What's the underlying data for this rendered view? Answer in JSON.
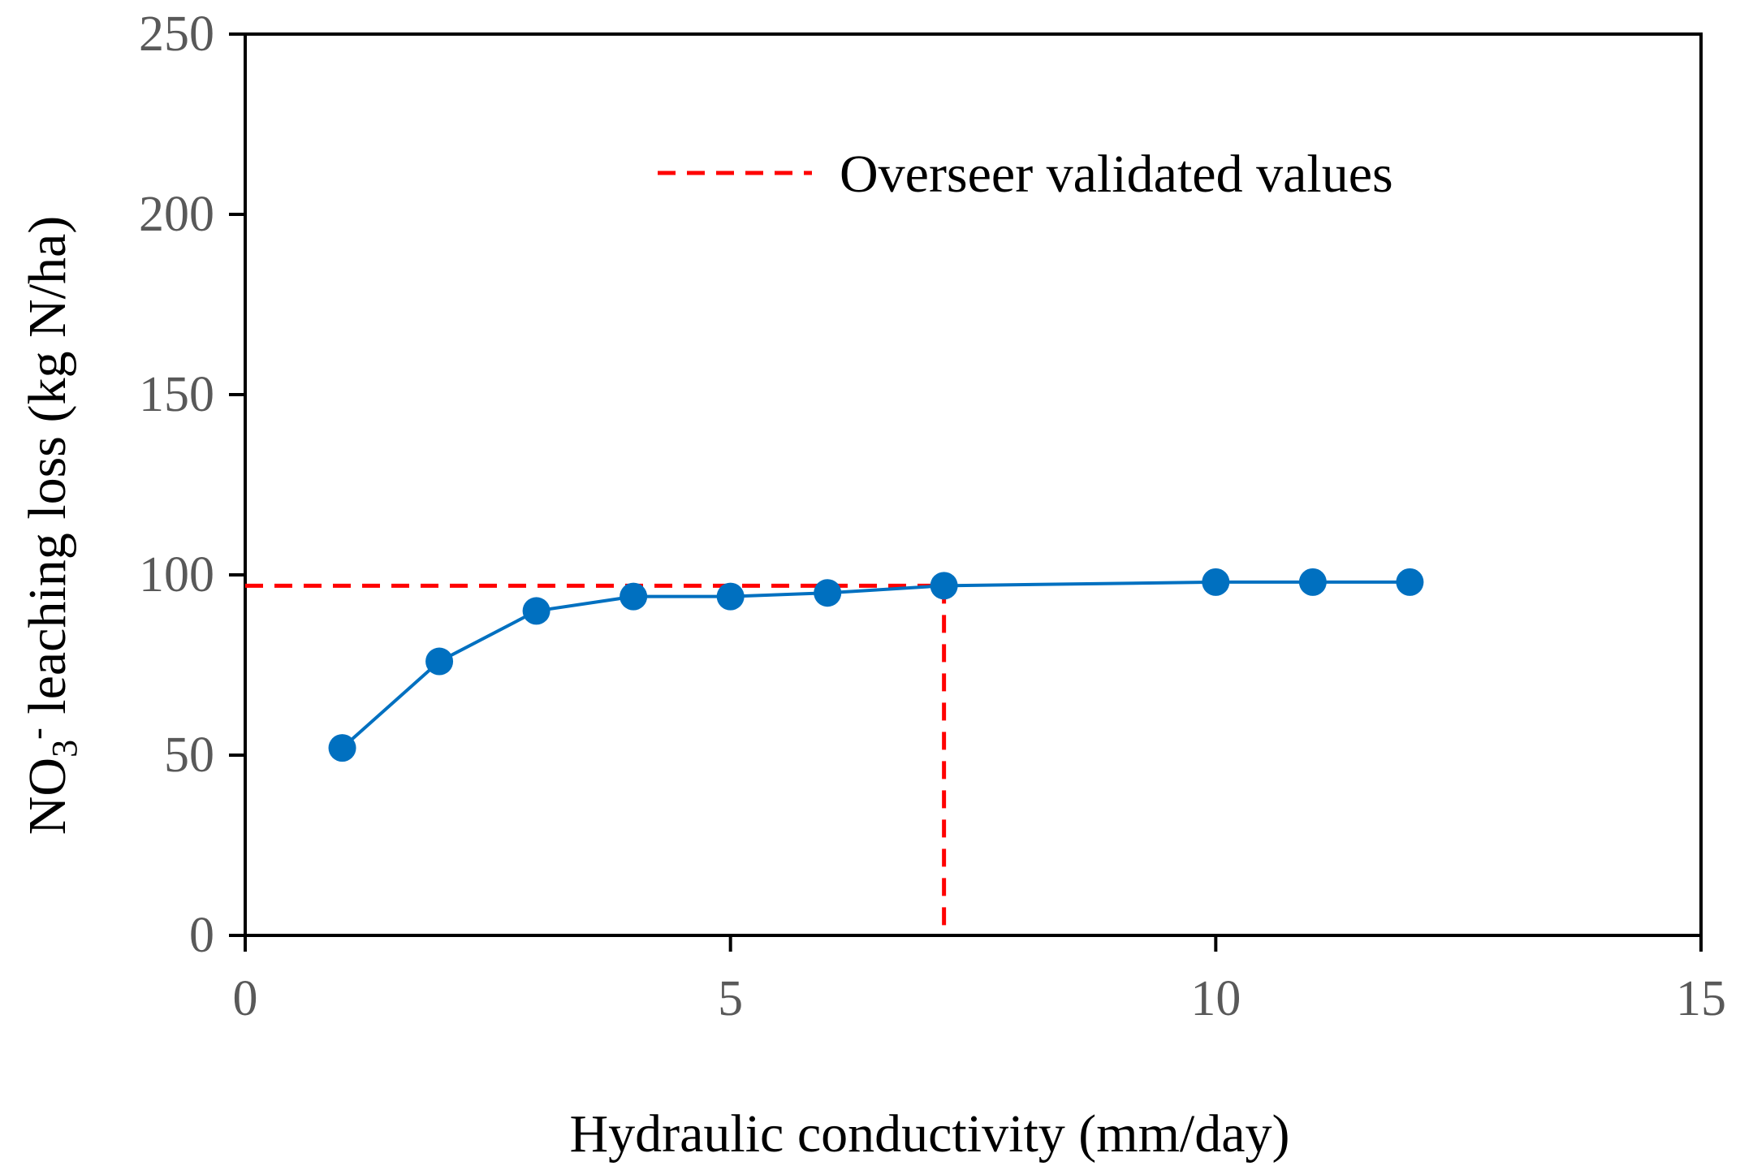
{
  "chart_data": {
    "type": "line",
    "xlabel": "Hydraulic conductivity (mm/day)",
    "ylabel": {
      "prefix": "NO",
      "subscript": "3",
      "superscript": "-",
      "suffix": " leaching loss (kg N/ha)"
    },
    "xlim": [
      0,
      15
    ],
    "ylim": [
      0,
      250
    ],
    "x_ticks": [
      0,
      5,
      10,
      15
    ],
    "y_ticks": [
      0,
      50,
      100,
      150,
      200,
      250
    ],
    "grid": false,
    "series": [
      {
        "color": "#0070C0",
        "marker": "circle",
        "x": [
          1,
          2,
          3,
          4,
          5,
          6,
          7.2,
          10,
          11,
          12
        ],
        "y": [
          52,
          76,
          90,
          94,
          94,
          95,
          97,
          98,
          98,
          98
        ]
      }
    ],
    "reference_lines": {
      "name": "Overseer validated values",
      "color": "#FF0000",
      "style": "dashed",
      "x": 7.2,
      "y": 97
    },
    "legend": {
      "position": "top-center",
      "entries": [
        "Overseer validated values"
      ]
    }
  }
}
